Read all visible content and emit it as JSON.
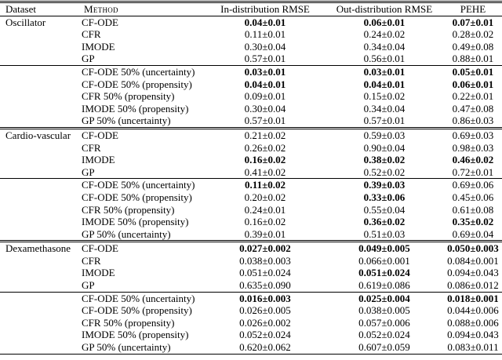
{
  "header": {
    "dataset": "Dataset",
    "method": "Method",
    "cols": [
      "In-distribution RMSE",
      "Out-distribution RMSE",
      "PEHE"
    ]
  },
  "groups": [
    {
      "dataset": "Oscillator",
      "blocks": [
        [
          {
            "method": "CF-ODE",
            "values": [
              "0.04±0.01",
              "0.06±0.01",
              "0.07±0.01"
            ],
            "bold": [
              1,
              1,
              1
            ]
          },
          {
            "method": "CFR",
            "values": [
              "0.11±0.01",
              "0.24±0.02",
              "0.28±0.02"
            ],
            "bold": [
              0,
              0,
              0
            ]
          },
          {
            "method": "IMODE",
            "values": [
              "0.30±0.04",
              "0.34±0.04",
              "0.49±0.08"
            ],
            "bold": [
              0,
              0,
              0
            ]
          },
          {
            "method": "GP",
            "values": [
              "0.57±0.01",
              "0.56±0.01",
              "0.88±0.01"
            ],
            "bold": [
              0,
              0,
              0
            ]
          }
        ],
        [
          {
            "method": "CF-ODE 50% (uncertainty)",
            "values": [
              "0.03±0.01",
              "0.03±0.01",
              "0.05±0.01"
            ],
            "bold": [
              1,
              1,
              1
            ]
          },
          {
            "method": "CF-ODE 50% (propensity)",
            "values": [
              "0.04±0.01",
              "0.04±0.01",
              "0.06±0.01"
            ],
            "bold": [
              1,
              1,
              1
            ]
          },
          {
            "method": "CFR 50% (propensity)",
            "values": [
              "0.09±0.01",
              "0.15±0.02",
              "0.22±0.01"
            ],
            "bold": [
              0,
              0,
              0
            ]
          },
          {
            "method": "IMODE 50% (propensity)",
            "values": [
              "0.30±0.04",
              "0.34±0.04",
              "0.47±0.08"
            ],
            "bold": [
              0,
              0,
              0
            ]
          },
          {
            "method": "GP 50% (uncertainty)",
            "values": [
              "0.57±0.01",
              "0.57±0.01",
              "0.86±0.03"
            ],
            "bold": [
              0,
              0,
              0
            ]
          }
        ]
      ]
    },
    {
      "dataset": "Cardio-vascular",
      "blocks": [
        [
          {
            "method": "CF-ODE",
            "values": [
              "0.21±0.02",
              "0.59±0.03",
              "0.69±0.03"
            ],
            "bold": [
              0,
              0,
              0
            ]
          },
          {
            "method": "CFR",
            "values": [
              "0.26±0.02",
              "0.90±0.04",
              "0.98±0.03"
            ],
            "bold": [
              0,
              0,
              0
            ]
          },
          {
            "method": "IMODE",
            "values": [
              "0.16±0.02",
              "0.38±0.02",
              "0.46±0.02"
            ],
            "bold": [
              1,
              1,
              1
            ]
          },
          {
            "method": "GP",
            "values": [
              "0.41±0.02",
              "0.52±0.02",
              "0.72±0.01"
            ],
            "bold": [
              0,
              0,
              0
            ]
          }
        ],
        [
          {
            "method": "CF-ODE 50% (uncertainty)",
            "values": [
              "0.11±0.02",
              "0.39±0.03",
              "0.69±0.06"
            ],
            "bold": [
              1,
              1,
              0
            ]
          },
          {
            "method": "CF-ODE 50% (propensity)",
            "values": [
              "0.20±0.02",
              "0.33±0.06",
              "0.45±0.06"
            ],
            "bold": [
              0,
              1,
              0
            ]
          },
          {
            "method": "CFR 50% (propensity)",
            "values": [
              "0.24±0.01",
              "0.55±0.04",
              "0.61±0.08"
            ],
            "bold": [
              0,
              0,
              0
            ]
          },
          {
            "method": "IMODE 50% (propensity)",
            "values": [
              "0.16±0.02",
              "0.36±0.02",
              "0.35±0.02"
            ],
            "bold": [
              0,
              1,
              1
            ]
          },
          {
            "method": "GP 50% (uncertainty)",
            "values": [
              "0.39±0.01",
              "0.51±0.03",
              "0.69±0.04"
            ],
            "bold": [
              0,
              0,
              0
            ]
          }
        ]
      ]
    },
    {
      "dataset": "Dexamethasone",
      "blocks": [
        [
          {
            "method": "CF-ODE",
            "values": [
              "0.027±0.002",
              "0.049±0.005",
              "0.050±0.003"
            ],
            "bold": [
              1,
              1,
              1
            ]
          },
          {
            "method": "CFR",
            "values": [
              "0.038±0.003",
              "0.066±0.001",
              "0.084±0.001"
            ],
            "bold": [
              0,
              0,
              0
            ]
          },
          {
            "method": "IMODE",
            "values": [
              "0.051±0.024",
              "0.051±0.024",
              "0.094±0.043"
            ],
            "bold": [
              0,
              1,
              0
            ]
          },
          {
            "method": "GP",
            "values": [
              "0.635±0.090",
              "0.619±0.086",
              "0.086±0.012"
            ],
            "bold": [
              0,
              0,
              0
            ]
          }
        ],
        [
          {
            "method": "CF-ODE 50% (uncertainty)",
            "values": [
              "0.016±0.003",
              "0.025±0.004",
              "0.018±0.001"
            ],
            "bold": [
              1,
              1,
              1
            ]
          },
          {
            "method": "CF-ODE 50% (propensity)",
            "values": [
              "0.026±0.005",
              "0.038±0.005",
              "0.044±0.006"
            ],
            "bold": [
              0,
              0,
              0
            ]
          },
          {
            "method": "CFR 50% (propensity)",
            "values": [
              "0.026±0.002",
              "0.057±0.006",
              "0.088±0.006"
            ],
            "bold": [
              0,
              0,
              0
            ]
          },
          {
            "method": "IMODE 50% (propensity)",
            "values": [
              "0.052±0.024",
              "0.052±0.024",
              "0.094±0.043"
            ],
            "bold": [
              0,
              0,
              0
            ]
          },
          {
            "method": "GP 50% (uncertainty)",
            "values": [
              "0.620±0.062",
              "0.607±0.059",
              "0.083±0.011"
            ],
            "bold": [
              0,
              0,
              0
            ]
          }
        ]
      ]
    }
  ]
}
